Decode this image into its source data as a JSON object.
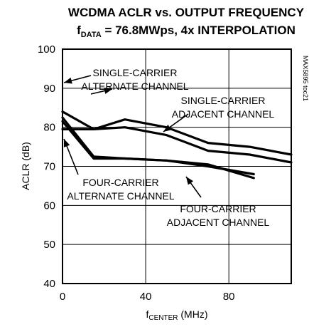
{
  "chart_data": {
    "type": "line",
    "title_line1": "WCDMA ACLR vs. OUTPUT FREQUENCY",
    "title_line2_main": "f",
    "title_line2_sub": "DATA",
    "title_line2_rest": " = 76.8MWps, 4x INTERPOLATION",
    "ylabel": "ACLR (dB)",
    "xlabel_main": "f",
    "xlabel_sub": "CENTER",
    "xlabel_rest": " (MHz)",
    "side_label": "MAX5895 toc21",
    "xlim": [
      0,
      110
    ],
    "ylim": [
      40,
      100
    ],
    "x_ticks": [
      "0",
      "40",
      "80"
    ],
    "y_ticks": [
      "40",
      "50",
      "60",
      "70",
      "80",
      "90",
      "100"
    ],
    "grid": true,
    "series": [
      {
        "name": "SINGLE-CARRIER ALTERNATE CHANNEL",
        "x": [
          0,
          15,
          30,
          50,
          70,
          90,
          110
        ],
        "y": [
          84,
          79.5,
          80,
          78,
          74,
          73,
          71
        ]
      },
      {
        "name": "SINGLE-CARRIER ADJACENT CHANNEL",
        "x": [
          0,
          15,
          30,
          50,
          70,
          90,
          110
        ],
        "y": [
          79.5,
          79.5,
          82,
          80,
          76,
          75,
          73
        ]
      },
      {
        "name": "FOUR-CARRIER ALTERNATE CHANNEL",
        "x": [
          0,
          15,
          30,
          50,
          70,
          92
        ],
        "y": [
          81.5,
          72,
          72,
          71.5,
          70.5,
          67
        ]
      },
      {
        "name": "FOUR-CARRIER ADJACENT CHANNEL",
        "x": [
          0,
          15,
          30,
          50,
          70,
          92
        ],
        "y": [
          82.5,
          72.5,
          72,
          71.5,
          70,
          68
        ]
      }
    ],
    "annotations": [
      {
        "lines": [
          "SINGLE-CARRIER",
          "ALTERNATE CHANNEL"
        ]
      },
      {
        "lines": [
          "SINGLE-CARRIER",
          "ADJACENT CHANNEL"
        ]
      },
      {
        "lines": [
          "FOUR-CARRIER",
          "ALTERNATE CHANNEL"
        ]
      },
      {
        "lines": [
          "FOUR-CARRIER",
          "ADJACENT CHANNEL"
        ]
      }
    ]
  }
}
